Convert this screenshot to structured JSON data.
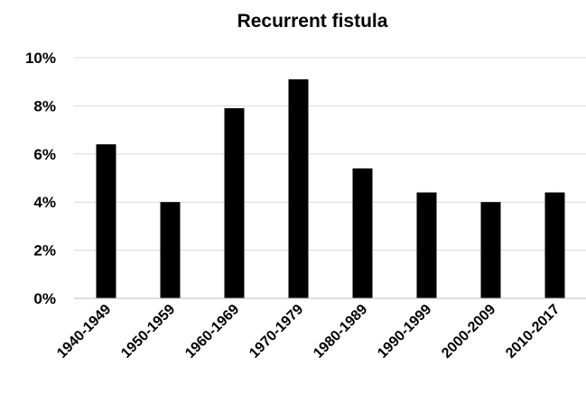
{
  "chart_data": {
    "type": "bar",
    "title": "Recurrent fistula",
    "xlabel": "",
    "ylabel": "",
    "categories": [
      "1940-1949",
      "1950-1959",
      "1960-1969",
      "1970-1979",
      "1980-1989",
      "1990-1999",
      "2000-2009",
      "2010-2017"
    ],
    "values": [
      6.4,
      4.0,
      7.9,
      9.1,
      5.4,
      4.4,
      4.0,
      4.4
    ],
    "unit": "%",
    "ylim": [
      0,
      10
    ],
    "yticks": [
      "0%",
      "2%",
      "4%",
      "6%",
      "8%",
      "10%"
    ],
    "grid": true,
    "legend": "none",
    "colors": {
      "bar": "#000000",
      "grid": "#d9d9d9",
      "axis": "#bfbfbf"
    }
  }
}
